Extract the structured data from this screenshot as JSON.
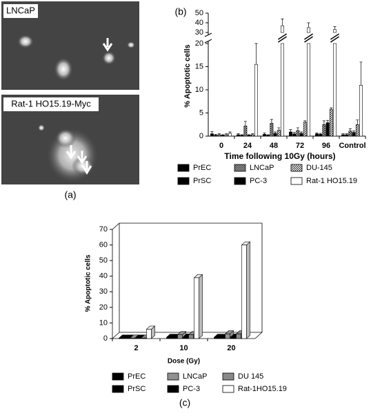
{
  "panel_a": {
    "labels": [
      "LNCaP",
      "Rat-1 HO15.19-Myc"
    ],
    "panel_label": "(a)"
  },
  "chart_data": [
    {
      "type": "bar",
      "panel_label": "(b)",
      "y_label": "% Apoptotic cells",
      "x_label": "Time following 10Gy (hours)",
      "categories": [
        "0",
        "24",
        "48",
        "72",
        "96",
        "Control"
      ],
      "ylim": [
        0,
        50
      ],
      "axis_break": [
        20,
        30
      ],
      "yticks": [
        0,
        5,
        10,
        15,
        20,
        30,
        40,
        50
      ],
      "series": [
        {
          "name": "PrEC",
          "color": "#000000",
          "values": [
            0.5,
            0.3,
            0.4,
            0.9,
            0.5,
            0.3
          ],
          "errors": [
            0.5,
            0.2,
            0.3,
            0.5,
            0.2,
            0.2
          ]
        },
        {
          "name": "PrSC",
          "color": "#000000",
          "values": [
            0.2,
            0.2,
            0.2,
            0.5,
            0.4,
            0.3
          ],
          "errors": [
            0.2,
            0.1,
            0.1,
            0.3,
            0.2,
            0.2
          ]
        },
        {
          "name": "LNCaP",
          "color": "#888888",
          "pattern": "crosshatch",
          "values": [
            0.3,
            2.2,
            2.8,
            1.2,
            2.5,
            1.1
          ],
          "errors": [
            0.2,
            1.0,
            0.8,
            0.6,
            0.8,
            0.5
          ]
        },
        {
          "name": "PC-3",
          "color": "#000000",
          "values": [
            0.2,
            0.2,
            0.6,
            0.6,
            2.9,
            0.8
          ],
          "errors": [
            0.1,
            0.1,
            0.3,
            0.3,
            0.5,
            0.3
          ]
        },
        {
          "name": "DU-145",
          "color": "#666666",
          "pattern": "diagonal",
          "values": [
            0.3,
            0.3,
            1.3,
            3.0,
            5.8,
            2.5
          ],
          "errors": [
            0.2,
            0.2,
            0.5,
            0.3,
            0.3,
            1.0
          ]
        },
        {
          "name": "Rat-1 HO15.19",
          "color": "#ffffff",
          "values": [
            0.6,
            15.5,
            37,
            35,
            33,
            11
          ],
          "errors": [
            0.3,
            4.5,
            7,
            5,
            3,
            5
          ]
        }
      ]
    },
    {
      "type": "bar3d",
      "panel_label": "(c)",
      "y_label": "% Apoptotic cells",
      "x_label": "Dose (Gy)",
      "categories": [
        "2",
        "10",
        "20"
      ],
      "ylim": [
        0,
        70
      ],
      "yticks": [
        0,
        10,
        20,
        30,
        40,
        50,
        60,
        70
      ],
      "series": [
        {
          "name": "PrEC",
          "color": "#000000",
          "values": [
            0.3,
            0.8,
            0.8
          ]
        },
        {
          "name": "PrSC",
          "color": "#000000",
          "values": [
            0.3,
            0.8,
            0.8
          ]
        },
        {
          "name": "LNCaP",
          "color": "#999999",
          "pattern": "checker",
          "values": [
            0.3,
            2.5,
            3
          ]
        },
        {
          "name": "PC-3",
          "color": "#000000",
          "values": [
            0.3,
            1,
            1
          ]
        },
        {
          "name": "DU 145",
          "color": "#888888",
          "values": [
            0.3,
            2.5,
            3
          ]
        },
        {
          "name": "Rat-1HO15.19",
          "color": "#ffffff",
          "values": [
            6,
            39,
            60
          ]
        }
      ]
    }
  ]
}
